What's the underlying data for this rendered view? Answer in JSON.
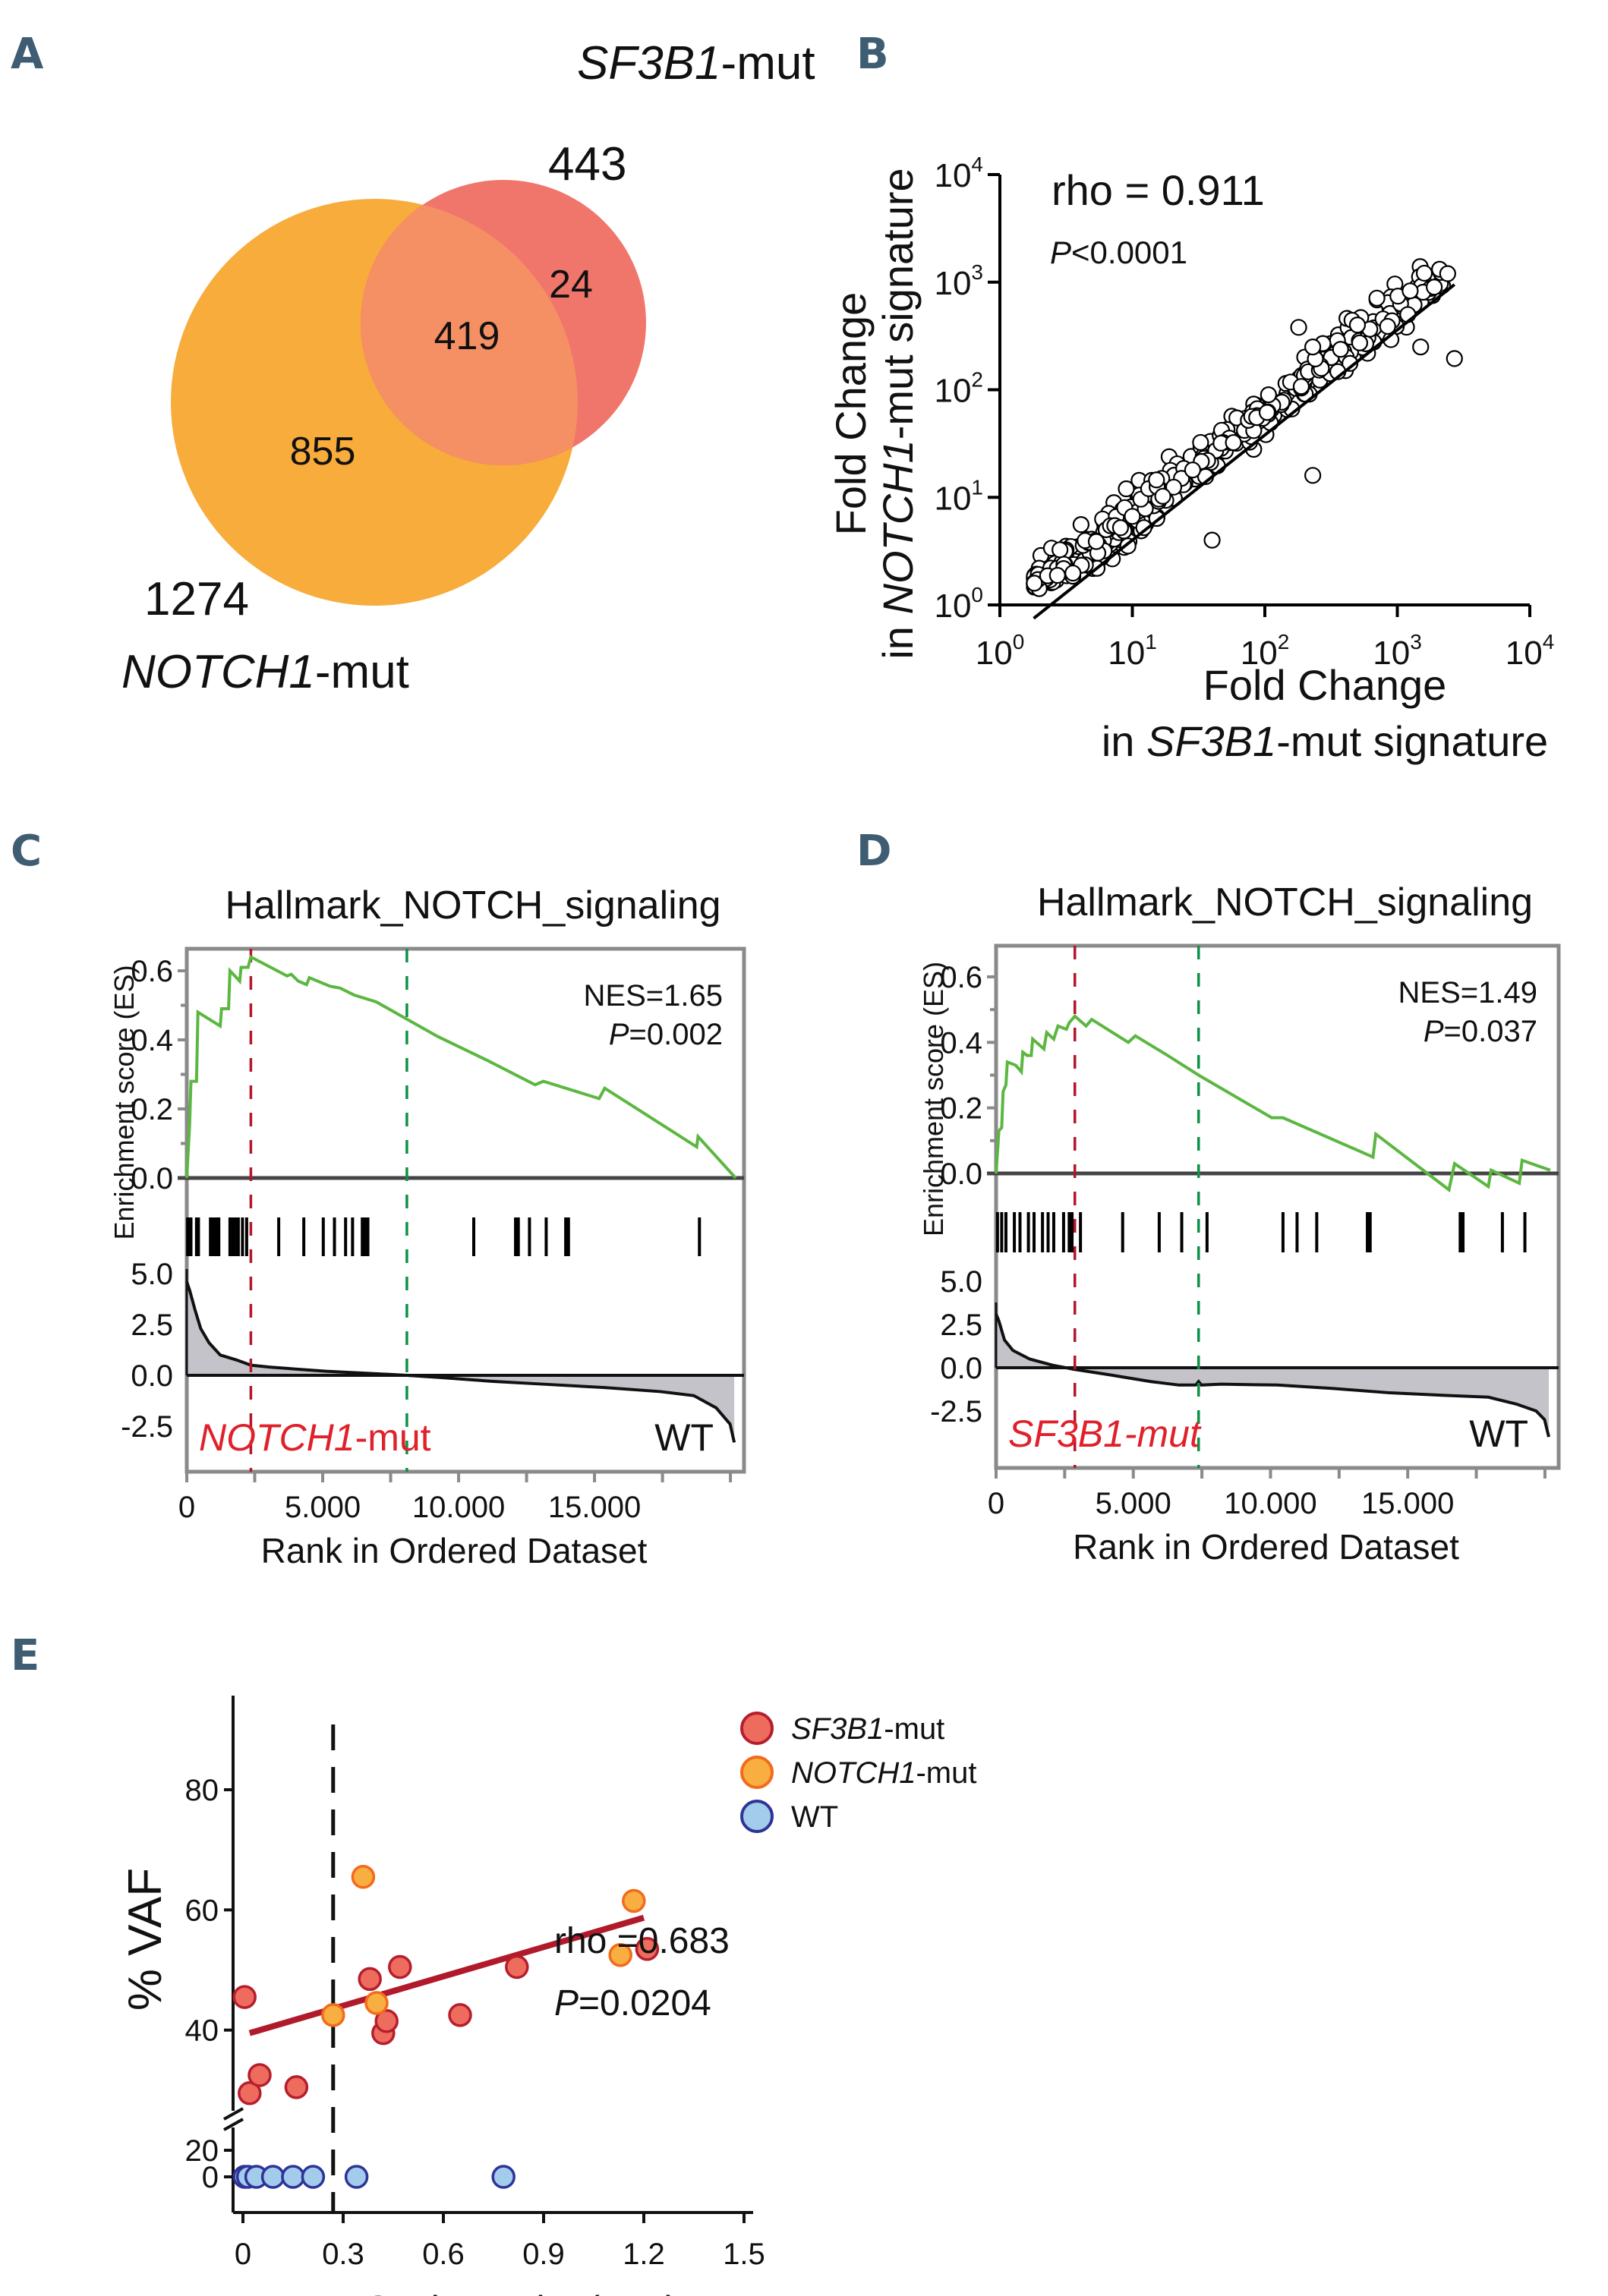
{
  "panel_labels": [
    "A",
    "B",
    "C",
    "D",
    "E"
  ],
  "chart_data": [
    {
      "panel": "A",
      "type": "venn",
      "sets": [
        {
          "name": "NOTCH1-mut",
          "name_italic": "NOTCH1",
          "name_suffix": "-mut",
          "total": "1274",
          "only": "855",
          "color": "#f7ac3c",
          "label_color": "#f06a1e"
        },
        {
          "name": "SF3B1-mut",
          "name_italic": "SF3B1",
          "name_suffix": "-mut",
          "total": "443",
          "only": "24",
          "color": "#ef6a5e",
          "label_color": "#c8202f"
        }
      ],
      "intersection": "419",
      "overlap_color": "#f58f64"
    },
    {
      "panel": "B",
      "type": "scatter",
      "xscale": "log",
      "yscale": "log",
      "xlim": [
        1,
        10000
      ],
      "ylim": [
        1,
        10000
      ],
      "xticks": [
        {
          "base": "10",
          "exp": "0"
        },
        {
          "base": "10",
          "exp": "1"
        },
        {
          "base": "10",
          "exp": "2"
        },
        {
          "base": "10",
          "exp": "3"
        },
        {
          "base": "10",
          "exp": "4"
        }
      ],
      "yticks": [
        {
          "base": "10",
          "exp": "0"
        },
        {
          "base": "10",
          "exp": "1"
        },
        {
          "base": "10",
          "exp": "2"
        },
        {
          "base": "10",
          "exp": "3"
        },
        {
          "base": "10",
          "exp": "4"
        }
      ],
      "xlabel_line1": "Fold Change",
      "xlabel_line2_pre": "in ",
      "xlabel_line2_italic": "SF3B1",
      "xlabel_line2_post": "-mut signature",
      "ylabel_line1": "Fold Change",
      "ylabel_line2_pre": "in ",
      "ylabel_line2_italic": "NOTCH1",
      "ylabel_line2_post": "-mut signature",
      "annotation_rho": "rho = 0.911",
      "annotation_p_italic": "P",
      "annotation_p_rest": "<0.0001",
      "fit_line": {
        "x": [
          1.8,
          2700
        ],
        "y": [
          0.75,
          950
        ]
      },
      "n_points_approx": 420,
      "point_cloud_note": "log10(y) ≈ 0.97·log10(x) - 0.15 ± 0.18; x range ~1.8–2700",
      "outliers": [
        [
          180,
          380
        ],
        [
          500,
          400
        ],
        [
          230,
          250
        ],
        [
          2700,
          195
        ],
        [
          1250,
          830
        ],
        [
          1500,
          250
        ],
        [
          1900,
          900
        ],
        [
          2400,
          1200
        ],
        [
          1200,
          500
        ],
        [
          9,
          12
        ],
        [
          40,
          4
        ],
        [
          230,
          16
        ]
      ]
    },
    {
      "panel": "C",
      "type": "gsea",
      "title": "Hallmark_NOTCH_signaling",
      "ylabel": "Enrichment score (ES)",
      "xlabel": "Rank in Ordered Dataset",
      "nes": "NES=1.65",
      "p_italic": "P",
      "p_rest": "=0.002",
      "es_yticks": [
        "0.0",
        "0.2",
        "0.4",
        "0.6"
      ],
      "es_ylim": [
        0,
        0.67
      ],
      "rank_yticks": [
        "-2.5",
        "0.0",
        "2.5",
        "5.0"
      ],
      "rank_ylim": [
        -3.8,
        5.6
      ],
      "xticks": [
        "0",
        "5.000",
        "10.000",
        "15.000"
      ],
      "xlim": [
        0,
        20000
      ],
      "n_genes": 19700,
      "red_line_rank": 2300,
      "green_line_rank": 7900,
      "left_label_italic": "NOTCH1",
      "left_label_suffix": "-mut",
      "right_label": "WT",
      "es_curve": [
        [
          0,
          0
        ],
        [
          100,
          0.15
        ],
        [
          150,
          0.28
        ],
        [
          350,
          0.28
        ],
        [
          400,
          0.48
        ],
        [
          1200,
          0.44
        ],
        [
          1250,
          0.49
        ],
        [
          1500,
          0.49
        ],
        [
          1550,
          0.6
        ],
        [
          1900,
          0.57
        ],
        [
          1950,
          0.61
        ],
        [
          2200,
          0.61
        ],
        [
          2300,
          0.64
        ],
        [
          3600,
          0.585
        ],
        [
          3750,
          0.59
        ],
        [
          4000,
          0.57
        ],
        [
          4300,
          0.56
        ],
        [
          4400,
          0.58
        ],
        [
          5150,
          0.555
        ],
        [
          5500,
          0.55
        ],
        [
          6000,
          0.53
        ],
        [
          6800,
          0.51
        ],
        [
          7900,
          0.46
        ],
        [
          9000,
          0.41
        ],
        [
          10800,
          0.34
        ],
        [
          12500,
          0.27
        ],
        [
          12800,
          0.28
        ],
        [
          13200,
          0.27
        ],
        [
          14800,
          0.23
        ],
        [
          15000,
          0.26
        ],
        [
          18300,
          0.09
        ],
        [
          18350,
          0.12
        ],
        [
          19700,
          0
        ]
      ],
      "hits": [
        30,
        90,
        150,
        350,
        420,
        850,
        950,
        1050,
        1150,
        1550,
        1650,
        1750,
        1850,
        2000,
        2150,
        3300,
        4200,
        4900,
        5300,
        5700,
        5950,
        6300,
        6400,
        6500,
        10300,
        11800,
        11900,
        12300,
        12900,
        13600,
        13700,
        18400
      ],
      "rank_curve": [
        [
          0,
          4.6
        ],
        [
          100,
          4.2
        ],
        [
          300,
          3.2
        ],
        [
          500,
          2.3
        ],
        [
          800,
          1.6
        ],
        [
          1200,
          1.0
        ],
        [
          1800,
          0.75
        ],
        [
          2300,
          0.5
        ],
        [
          3000,
          0.4
        ],
        [
          4000,
          0.3
        ],
        [
          5000,
          0.2
        ],
        [
          6500,
          0.1
        ],
        [
          7900,
          0
        ],
        [
          9000,
          -0.1
        ],
        [
          11000,
          -0.3
        ],
        [
          13000,
          -0.45
        ],
        [
          15000,
          -0.6
        ],
        [
          17000,
          -0.8
        ],
        [
          18200,
          -1.0
        ],
        [
          19000,
          -1.6
        ],
        [
          19500,
          -2.4
        ],
        [
          19650,
          -3.3
        ]
      ]
    },
    {
      "panel": "D",
      "type": "gsea",
      "title": "Hallmark_NOTCH_signaling",
      "ylabel": "Enrichment score (ES)",
      "xlabel": "Rank in Ordered Dataset",
      "nes": "NES=1.49",
      "p_italic": "P",
      "p_rest": "=0.037",
      "es_yticks": [
        "0.0",
        "0.2",
        "0.4",
        "0.6"
      ],
      "es_ylim": [
        0,
        0.67
      ],
      "rank_yticks": [
        "-2.5",
        "0.0",
        "2.5",
        "5.0"
      ],
      "rank_ylim": [
        -3.8,
        5.6
      ],
      "xticks": [
        "0",
        "5.000",
        "10.000",
        "15.000"
      ],
      "xlim": [
        0,
        20000
      ],
      "n_genes": 19700,
      "red_line_rank": 2800,
      "green_line_rank": 7200,
      "left_label_italic": "SF3B1-mut",
      "left_label_suffix": "",
      "right_label": "WT",
      "es_curve": [
        [
          0,
          0
        ],
        [
          100,
          0.13
        ],
        [
          200,
          0.14
        ],
        [
          250,
          0.25
        ],
        [
          350,
          0.27
        ],
        [
          400,
          0.34
        ],
        [
          700,
          0.33
        ],
        [
          900,
          0.31
        ],
        [
          950,
          0.37
        ],
        [
          1100,
          0.36
        ],
        [
          1250,
          0.36
        ],
        [
          1300,
          0.41
        ],
        [
          1700,
          0.38
        ],
        [
          1800,
          0.43
        ],
        [
          2050,
          0.41
        ],
        [
          2200,
          0.45
        ],
        [
          2500,
          0.44
        ],
        [
          2600,
          0.46
        ],
        [
          2800,
          0.48
        ],
        [
          3200,
          0.45
        ],
        [
          3400,
          0.47
        ],
        [
          4700,
          0.4
        ],
        [
          4950,
          0.42
        ],
        [
          6100,
          0.36
        ],
        [
          7200,
          0.3
        ],
        [
          9800,
          0.17
        ],
        [
          10200,
          0.17
        ],
        [
          11800,
          0.11
        ],
        [
          13400,
          0.05
        ],
        [
          13500,
          0.12
        ],
        [
          16100,
          -0.05
        ],
        [
          16300,
          0.03
        ],
        [
          17500,
          -0.04
        ],
        [
          17600,
          0.01
        ],
        [
          18600,
          -0.03
        ],
        [
          18700,
          0.04
        ],
        [
          19700,
          0.01
        ]
      ],
      "hits": [
        50,
        200,
        350,
        650,
        850,
        1150,
        1350,
        1650,
        1850,
        2050,
        2400,
        2600,
        2700,
        3000,
        4500,
        5800,
        6600,
        7500,
        10200,
        10700,
        11400,
        13200,
        13300,
        16500,
        16600,
        18000,
        18800
      ],
      "rank_curve": [
        [
          0,
          3.1
        ],
        [
          100,
          2.7
        ],
        [
          300,
          1.6
        ],
        [
          600,
          1.0
        ],
        [
          1200,
          0.5
        ],
        [
          2000,
          0.15
        ],
        [
          2800,
          -0.1
        ],
        [
          4000,
          -0.4
        ],
        [
          5500,
          -0.8
        ],
        [
          6500,
          -1.0
        ],
        [
          7100,
          -1.0
        ],
        [
          7200,
          -0.8
        ],
        [
          7300,
          -1.0
        ],
        [
          8000,
          -0.95
        ],
        [
          10000,
          -1.0
        ],
        [
          12000,
          -1.2
        ],
        [
          14000,
          -1.45
        ],
        [
          16000,
          -1.6
        ],
        [
          17500,
          -1.7
        ],
        [
          18500,
          -2.1
        ],
        [
          19200,
          -2.5
        ],
        [
          19500,
          -3.0
        ],
        [
          19650,
          -4.0
        ]
      ]
    },
    {
      "panel": "E",
      "type": "scatter",
      "xlabel": "NICD intensity (a.u.)",
      "ylabel": "% VAF",
      "xticks": [
        "0",
        "0.3",
        "0.6",
        "0.9",
        "1.2",
        "1.5"
      ],
      "xlim": [
        0,
        1.5
      ],
      "yticks": [
        "0",
        "20",
        "40",
        "60",
        "80"
      ],
      "ylim_upper": [
        15,
        90
      ],
      "y_axis_break": true,
      "threshold_line_x": 0.27,
      "annotation_rho": "rho =0.683",
      "annotation_p_italic": "P",
      "annotation_p_rest": "=0.0204",
      "fit_line": {
        "x": [
          0.02,
          1.2
        ],
        "y": [
          39.5,
          58.7
        ],
        "color": "#b01a2b"
      },
      "legend_position": "top-right",
      "legend": [
        {
          "italic": "SF3B1",
          "suffix": "-mut",
          "fill": "#ee6c5d",
          "stroke": "#b61e2d"
        },
        {
          "italic": "NOTCH1",
          "suffix": "-mut",
          "fill": "#f8ae40",
          "stroke": "#f36a1c"
        },
        {
          "italic": "",
          "suffix": "WT",
          "fill": "#a3cbec",
          "stroke": "#2e3497"
        }
      ],
      "series": [
        {
          "name": "SF3B1-mut",
          "points": [
            [
              0.005,
              45.5
            ],
            [
              0.02,
              29.5
            ],
            [
              0.05,
              32.5
            ],
            [
              0.16,
              30.5
            ],
            [
              0.38,
              48.5
            ],
            [
              0.42,
              39.5
            ],
            [
              0.43,
              41.5
            ],
            [
              0.47,
              50.5
            ],
            [
              0.65,
              42.5
            ],
            [
              0.82,
              50.5
            ],
            [
              1.21,
              53.5
            ]
          ]
        },
        {
          "name": "NOTCH1-mut",
          "points": [
            [
              0.27,
              42.5
            ],
            [
              0.36,
              65.5
            ],
            [
              0.4,
              44.5
            ],
            [
              1.13,
              52.5
            ],
            [
              1.17,
              61.5
            ]
          ]
        },
        {
          "name": "WT",
          "points": [
            [
              0.005,
              0
            ],
            [
              0.015,
              0
            ],
            [
              0.04,
              0
            ],
            [
              0.09,
              0
            ],
            [
              0.15,
              0
            ],
            [
              0.21,
              0
            ],
            [
              0.34,
              0
            ],
            [
              0.78,
              0
            ]
          ]
        }
      ]
    }
  ]
}
